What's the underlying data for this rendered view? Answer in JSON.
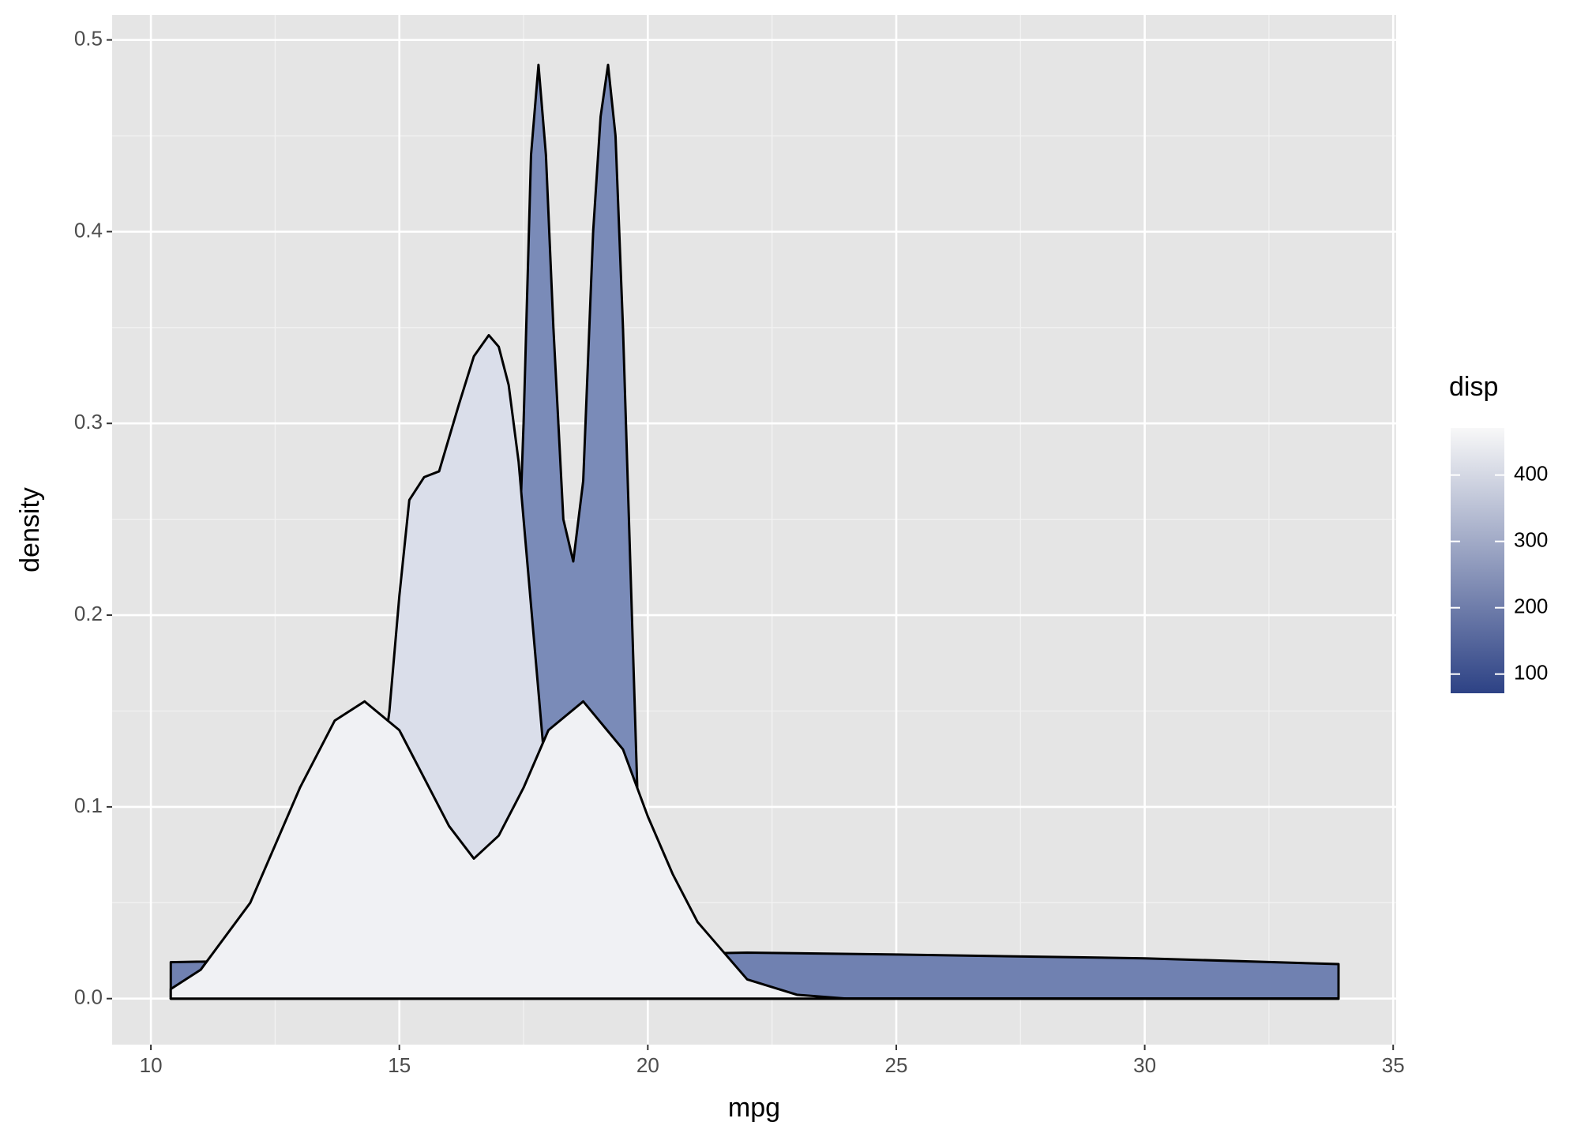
{
  "chart_data": {
    "type": "density",
    "x_label": "mpg",
    "y_label": "density",
    "xlim": [
      9.22,
      35.06
    ],
    "ylim": [
      -0.024,
      0.513
    ],
    "xticks": [
      10,
      15,
      20,
      25,
      30,
      35
    ],
    "yticks": [
      {
        "value": 0,
        "label": "0.0"
      },
      0.1,
      0.2,
      0.3,
      0.4,
      0.5
    ],
    "grid": true,
    "series": [
      {
        "color": "#7081b1",
        "x": [
          10.4,
          15,
          20,
          22,
          25,
          30,
          33.9
        ],
        "values": [
          0.019,
          0.021,
          0.023,
          0.024,
          0.023,
          0.021,
          0.018
        ]
      },
      {
        "color": "#7a8bb8",
        "x": [
          10.4,
          16,
          16.8,
          17.2,
          17.5,
          17.65,
          17.8,
          17.95,
          18.1,
          18.3,
          18.5,
          18.7,
          18.9,
          19.05,
          19.2,
          19.35,
          19.5,
          19.8,
          20.0,
          20.3,
          33.9
        ],
        "values": [
          0,
          0,
          0.005,
          0.08,
          0.3,
          0.44,
          0.487,
          0.44,
          0.35,
          0.25,
          0.228,
          0.27,
          0.4,
          0.46,
          0.487,
          0.45,
          0.35,
          0.1,
          0.02,
          0,
          0
        ]
      },
      {
        "color": "#dadeea",
        "x": [
          10.4,
          13,
          14,
          14.5,
          14.8,
          15.0,
          15.2,
          15.5,
          15.8,
          16.2,
          16.5,
          16.8,
          17.0,
          17.2,
          17.4,
          17.6,
          18.0,
          18.5,
          19,
          33.9
        ],
        "values": [
          0,
          0,
          0.02,
          0.09,
          0.15,
          0.21,
          0.26,
          0.272,
          0.275,
          0.31,
          0.335,
          0.346,
          0.34,
          0.32,
          0.28,
          0.22,
          0.1,
          0.02,
          0,
          0
        ]
      },
      {
        "color": "#f0f1f4",
        "x": [
          10.4,
          11,
          12,
          13,
          13.7,
          14.3,
          15,
          15.5,
          16,
          16.5,
          17,
          17.5,
          18,
          18.7,
          19.5,
          20,
          20.5,
          21,
          22,
          23,
          24,
          33.9
        ],
        "values": [
          0.005,
          0.015,
          0.05,
          0.11,
          0.145,
          0.155,
          0.14,
          0.115,
          0.09,
          0.073,
          0.085,
          0.11,
          0.14,
          0.155,
          0.13,
          0.095,
          0.065,
          0.04,
          0.01,
          0.002,
          0,
          0
        ]
      }
    ],
    "colorbar": {
      "title": "disp",
      "lim": [
        71.1,
        471
      ],
      "ticks": [
        100,
        200,
        300,
        400
      ],
      "low": "#2d4285",
      "high": "#f8f8f8"
    }
  }
}
